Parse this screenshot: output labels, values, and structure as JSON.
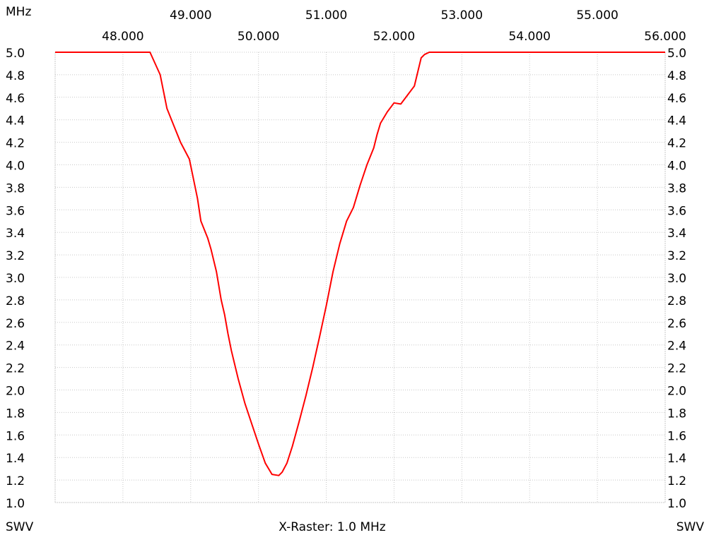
{
  "header": {
    "unit_label": "MHz"
  },
  "footer": {
    "left_label": "SWV",
    "center_label": "X-Raster: 1.0 MHz",
    "right_label": "SWV"
  },
  "colors": {
    "background": "#ffffff",
    "grid": "#c8c8c8",
    "trace": "#ff0000",
    "text": "#000000"
  },
  "chart_data": {
    "type": "line",
    "title": "",
    "xlabel": "X-Raster: 1.0 MHz",
    "ylabel": "SWV",
    "xlim": [
      47.0,
      56.0
    ],
    "ylim": [
      1.0,
      5.0
    ],
    "grid": true,
    "x_ticks_lower": [
      "48.000",
      "50.000",
      "52.000",
      "54.000",
      "56.000"
    ],
    "x_ticks_upper": [
      "49.000",
      "51.000",
      "53.000",
      "55.000"
    ],
    "x_tick_values_lower": [
      48,
      50,
      52,
      54,
      56
    ],
    "x_tick_values_upper": [
      49,
      51,
      53,
      55
    ],
    "y_ticks": [
      "5.0",
      "4.8",
      "4.6",
      "4.4",
      "4.2",
      "4.0",
      "3.8",
      "3.6",
      "3.4",
      "3.2",
      "3.0",
      "2.8",
      "2.6",
      "2.4",
      "2.2",
      "2.0",
      "1.8",
      "1.6",
      "1.4",
      "1.2",
      "1.0"
    ],
    "series": [
      {
        "color": "#ff0000",
        "x": [
          47.0,
          48.4,
          48.55,
          48.65,
          48.75,
          48.85,
          48.98,
          49.1,
          49.15,
          49.25,
          49.3,
          49.38,
          49.45,
          49.5,
          49.55,
          49.6,
          49.7,
          49.8,
          49.9,
          50.0,
          50.1,
          50.2,
          50.3,
          50.35,
          50.42,
          50.5,
          50.6,
          50.7,
          50.8,
          50.9,
          51.0,
          51.1,
          51.2,
          51.3,
          51.4,
          51.5,
          51.6,
          51.7,
          51.75,
          51.8,
          51.9,
          52.0,
          52.1,
          52.2,
          52.3,
          52.4,
          52.45,
          52.52,
          52.6,
          52.65,
          52.7,
          52.75,
          52.8,
          53.0,
          56.0
        ],
        "y": [
          5.0,
          5.0,
          4.8,
          4.5,
          4.35,
          4.2,
          4.05,
          3.7,
          3.5,
          3.35,
          3.25,
          3.05,
          2.8,
          2.67,
          2.5,
          2.35,
          2.1,
          1.88,
          1.7,
          1.52,
          1.35,
          1.25,
          1.24,
          1.27,
          1.35,
          1.5,
          1.72,
          1.95,
          2.2,
          2.47,
          2.75,
          3.05,
          3.3,
          3.5,
          3.62,
          3.82,
          4.0,
          4.15,
          4.27,
          4.37,
          4.47,
          4.55,
          4.54,
          4.62,
          4.7,
          4.95,
          4.98,
          5.0,
          5.0,
          5.0,
          5.0,
          5.0,
          5.0,
          5.0,
          5.0
        ]
      }
    ]
  }
}
